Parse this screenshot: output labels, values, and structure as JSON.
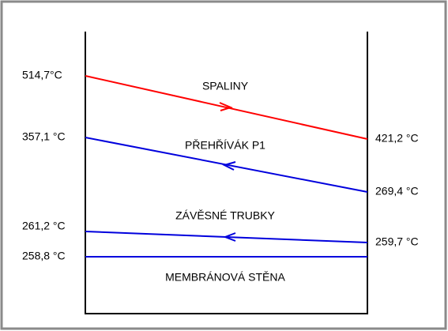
{
  "streams": [
    {
      "name": "SPALINY",
      "left": "514,7°C",
      "right": "421,2 °C"
    },
    {
      "name": "PŘEHŘÍVÁK P1",
      "left": "357,1 °C",
      "right": "269,4 °C"
    },
    {
      "name": "ZÁVĚSNÉ TRUBKY",
      "left": "261,2 °C",
      "right": "259,7 °C"
    },
    {
      "name": "MEMBRÁNOVÁ STĚNA",
      "left": "258,8 °C"
    }
  ]
}
